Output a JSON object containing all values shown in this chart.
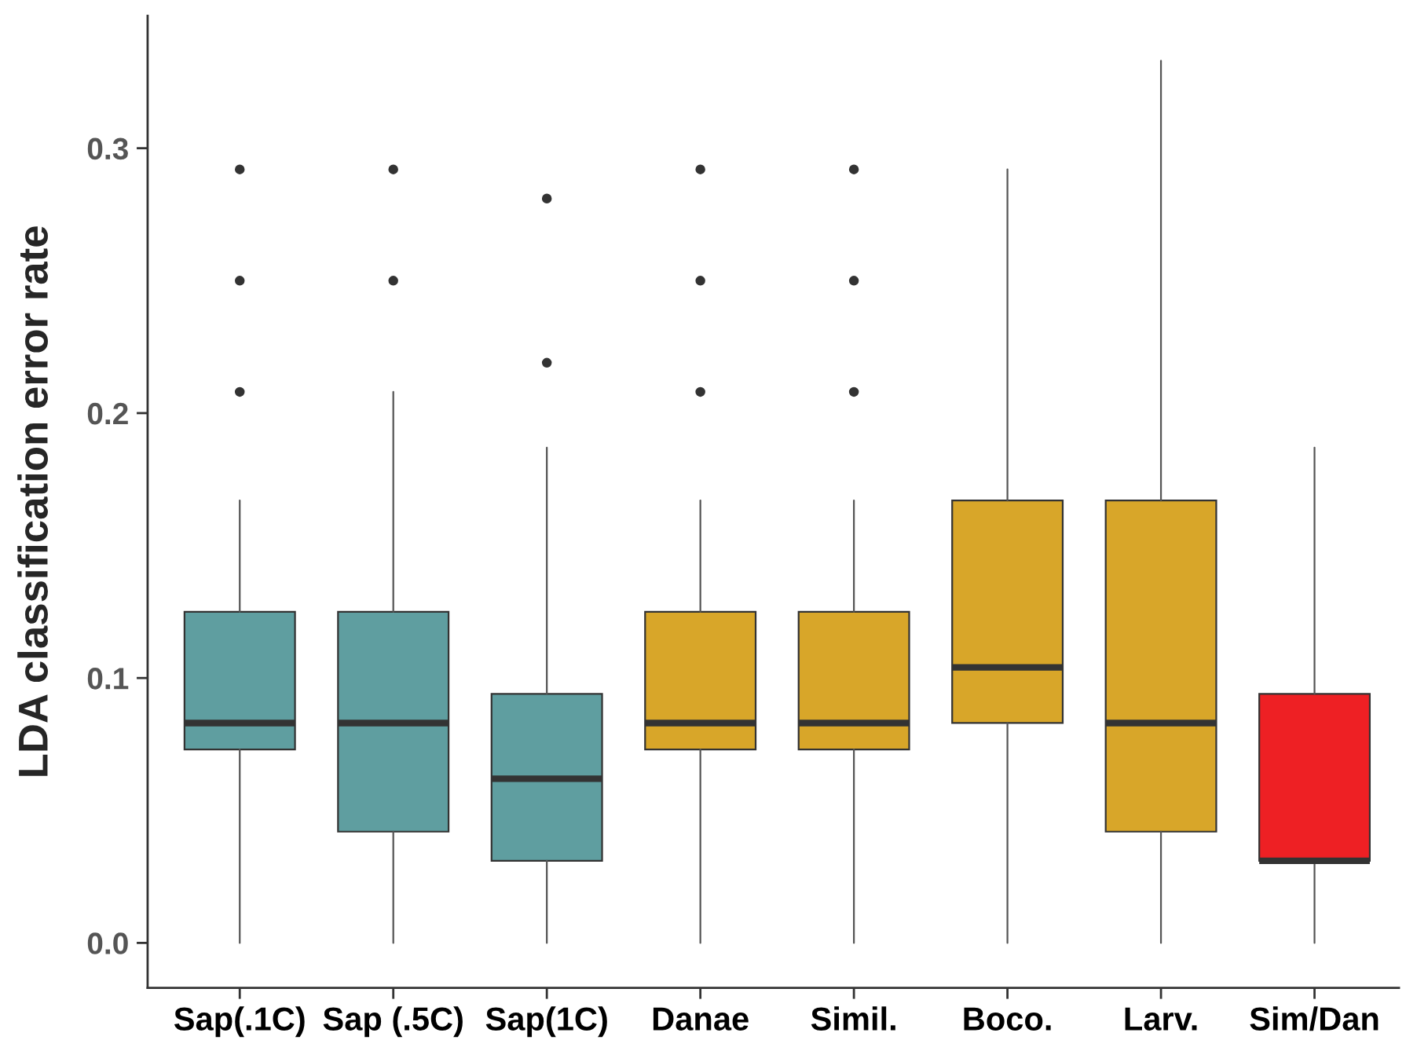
{
  "chart_data": {
    "type": "box",
    "ylabel": "LDA classification error rate",
    "categories": [
      "Sap(.1C)",
      "Sap (.5C)",
      "Sap(1C)",
      "Danae",
      "Simil.",
      "Boco.",
      "Larv.",
      "Sim/Dan"
    ],
    "colors": [
      "#5f9ea0",
      "#5f9ea0",
      "#5f9ea0",
      "#d8a629",
      "#d8a629",
      "#d8a629",
      "#d8a629",
      "#ee2024"
    ],
    "boxes": [
      {
        "low": 0.0,
        "q1": 0.073,
        "median": 0.083,
        "q3": 0.125,
        "high": 0.167,
        "outliers": [
          0.208,
          0.25,
          0.292
        ]
      },
      {
        "low": 0.0,
        "q1": 0.042,
        "median": 0.083,
        "q3": 0.125,
        "high": 0.208,
        "outliers": [
          0.25,
          0.292
        ]
      },
      {
        "low": 0.0,
        "q1": 0.031,
        "median": 0.062,
        "q3": 0.094,
        "high": 0.187,
        "outliers": [
          0.219,
          0.281
        ]
      },
      {
        "low": 0.0,
        "q1": 0.073,
        "median": 0.083,
        "q3": 0.125,
        "high": 0.167,
        "outliers": [
          0.208,
          0.25,
          0.292
        ]
      },
      {
        "low": 0.0,
        "q1": 0.073,
        "median": 0.083,
        "q3": 0.125,
        "high": 0.167,
        "outliers": [
          0.208,
          0.25,
          0.292
        ]
      },
      {
        "low": 0.0,
        "q1": 0.083,
        "median": 0.104,
        "q3": 0.167,
        "high": 0.292
      },
      {
        "low": 0.0,
        "q1": 0.042,
        "median": 0.083,
        "q3": 0.167,
        "high": 0.333
      },
      {
        "low": 0.0,
        "q1": 0.031,
        "median": 0.031,
        "q3": 0.094,
        "high": 0.187
      }
    ],
    "ylim": [
      -0.017,
      0.35
    ],
    "yticks": [
      {
        "value": 0.0,
        "label": "0.0"
      },
      0.1,
      0.2,
      0.3
    ],
    "grid": false
  }
}
